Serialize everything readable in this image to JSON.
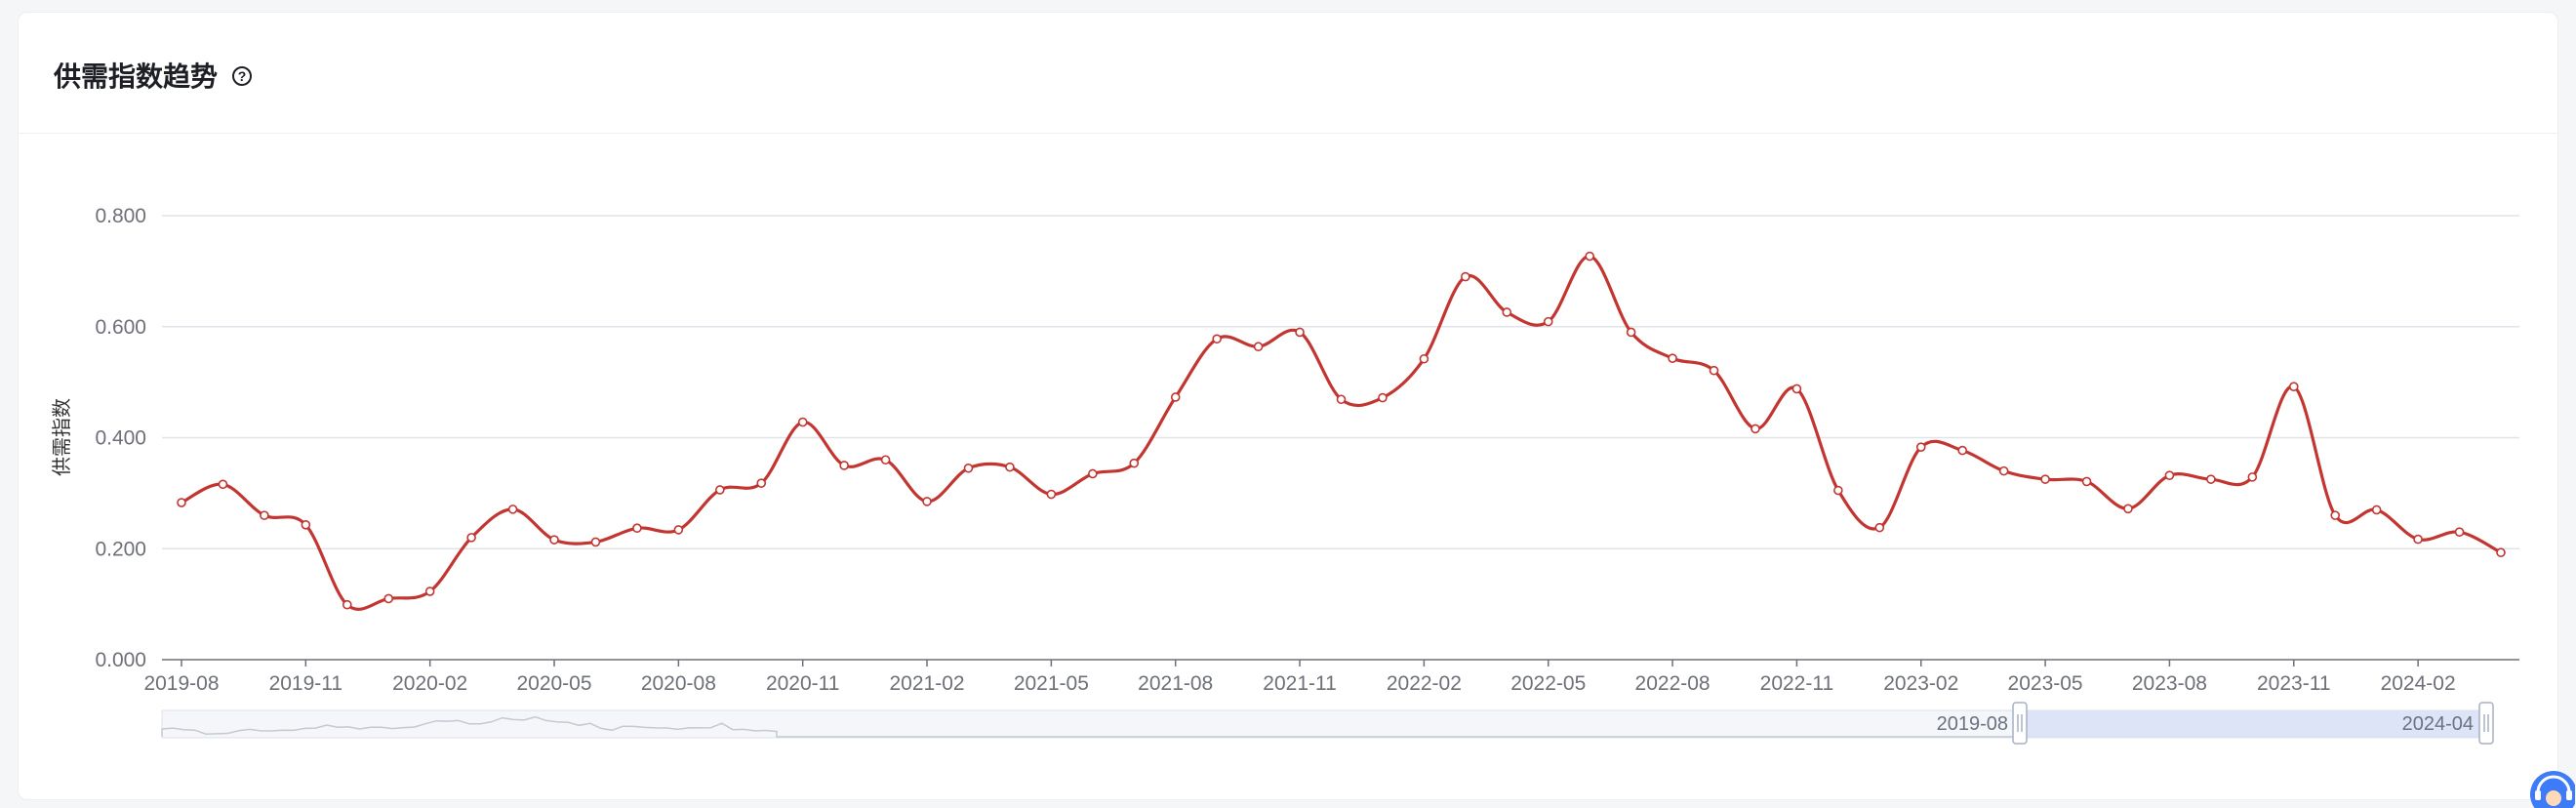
{
  "header": {
    "title": "供需指数趋势",
    "help_icon": "question-circle-icon",
    "help_glyph": "?"
  },
  "chart_data": {
    "type": "line",
    "title": "",
    "xlabel": "",
    "ylabel": "供需指数",
    "ylim": [
      0,
      0.8
    ],
    "y_ticks": [
      "0.000",
      "0.200",
      "0.400",
      "0.600",
      "0.800"
    ],
    "x_tick_labels": [
      "2019-08",
      "2019-11",
      "2020-02",
      "2020-05",
      "2020-08",
      "2020-11",
      "2021-02",
      "2021-05",
      "2021-08",
      "2021-11",
      "2022-02",
      "2022-05",
      "2022-08",
      "2022-11",
      "2023-02",
      "2023-05",
      "2023-08",
      "2023-11",
      "2024-02"
    ],
    "grid": true,
    "legend": "none",
    "line_color": "#c23531",
    "x": [
      "2019-08",
      "2019-09",
      "2019-10",
      "2019-11",
      "2019-12",
      "2020-01",
      "2020-02",
      "2020-03",
      "2020-04",
      "2020-05",
      "2020-06",
      "2020-07",
      "2020-08",
      "2020-09",
      "2020-10",
      "2020-11",
      "2020-12",
      "2021-01",
      "2021-02",
      "2021-03",
      "2021-04",
      "2021-05",
      "2021-06",
      "2021-07",
      "2021-08",
      "2021-09",
      "2021-10",
      "2021-11",
      "2021-12",
      "2022-01",
      "2022-02",
      "2022-03",
      "2022-04",
      "2022-05",
      "2022-06",
      "2022-07",
      "2022-08",
      "2022-09",
      "2022-10",
      "2022-11",
      "2022-12",
      "2023-01",
      "2023-02",
      "2023-03",
      "2023-04",
      "2023-05",
      "2023-06",
      "2023-07",
      "2023-08",
      "2023-09",
      "2023-10",
      "2023-11",
      "2023-12",
      "2024-01",
      "2024-02",
      "2024-03",
      "2024-04"
    ],
    "series": [
      {
        "values": [
          0.283,
          0.316,
          0.26,
          0.243,
          0.099,
          0.11,
          0.123,
          0.22,
          0.271,
          0.216,
          0.212,
          0.237,
          0.234,
          0.306,
          0.318,
          0.428,
          0.35,
          0.36,
          0.285,
          0.345,
          0.347,
          0.298,
          0.335,
          0.354,
          0.473,
          0.578,
          0.564,
          0.59,
          0.469,
          0.472,
          0.542,
          0.69,
          0.626,
          0.609,
          0.727,
          0.59,
          0.543,
          0.521,
          0.416,
          0.488,
          0.305,
          0.238,
          0.383,
          0.377,
          0.34,
          0.325,
          0.321,
          0.272,
          0.332,
          0.325,
          0.329,
          0.492,
          0.26,
          0.27,
          0.217,
          0.23,
          0.193
        ]
      }
    ],
    "datazoom": {
      "start_label": "2019-08",
      "end_label": "2024-04"
    }
  },
  "support": {
    "icon": "customer-service-icon"
  }
}
